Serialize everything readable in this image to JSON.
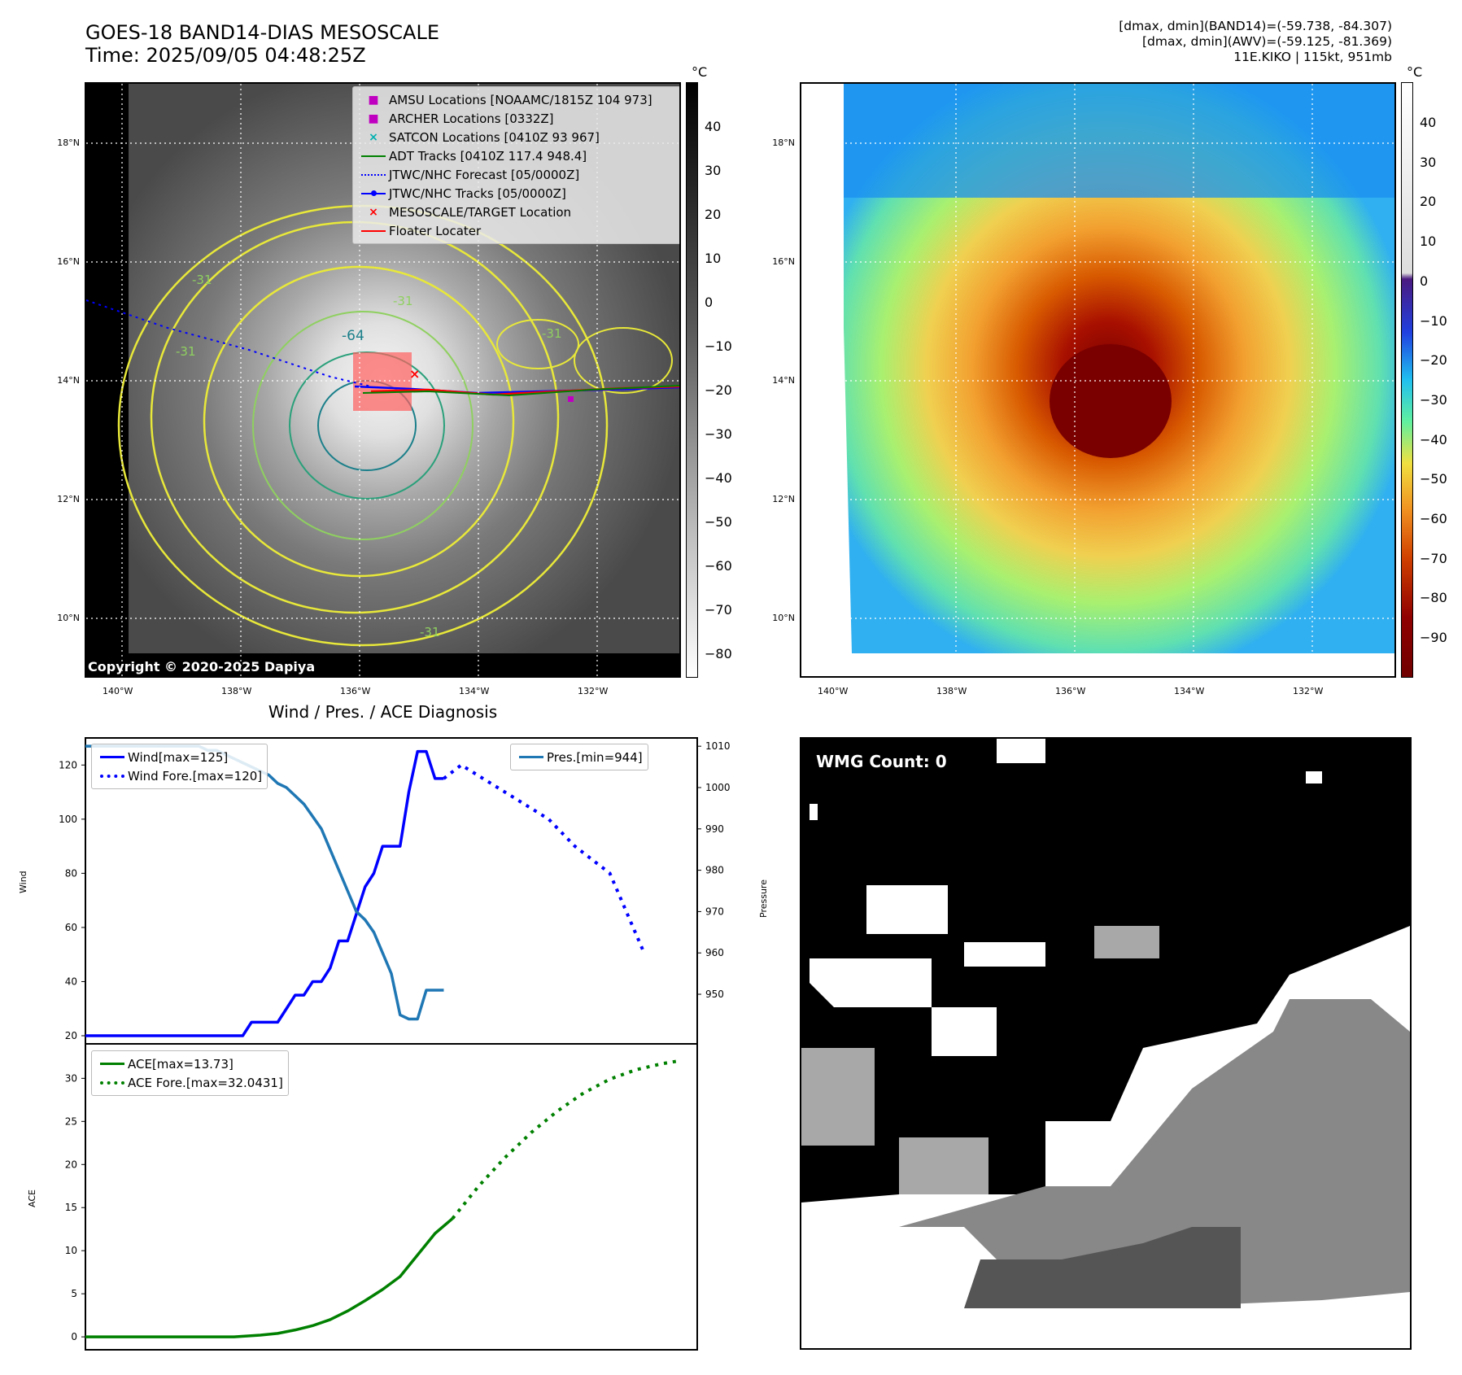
{
  "header": {
    "title_line1": "GOES-18 BAND14-DIAS MESOSCALE",
    "title_line2": "Time: 2025/09/05 04:48:25Z",
    "info_line1": "[dmax, dmin](BAND14)=(-59.738, -84.307)",
    "info_line2": "[dmax, dmin](AWV)=(-59.125, -81.369)",
    "info_line3": "11E.KIKO | 115kt, 951mb"
  },
  "map_axes": {
    "lat_labels": [
      "18°N",
      "16°N",
      "14°N",
      "12°N",
      "10°N"
    ],
    "lon_labels": [
      "140°W",
      "138°W",
      "136°W",
      "134°W",
      "132°W"
    ]
  },
  "ir_panel": {
    "legend": [
      {
        "label": "AMSU Locations [NOAAMC/1815Z 104 973]",
        "icon": "square-marker",
        "color": "#c000c0"
      },
      {
        "label": "ARCHER Locations [0332Z]",
        "icon": "square-marker",
        "color": "#c000c0"
      },
      {
        "label": "SATCON Locations [0410Z 93 967]",
        "icon": "x-marker",
        "color": "#00b0b0"
      },
      {
        "label": "ADT Tracks [0410Z 117.4 948.4]",
        "icon": "solid-line",
        "color": "#008000"
      },
      {
        "label": "JTWC/NHC Forecast [05/0000Z]",
        "icon": "dotted-line",
        "color": "#0000ff"
      },
      {
        "label": "JTWC/NHC Tracks [05/0000Z]",
        "icon": "line-dot",
        "color": "#0000ff"
      },
      {
        "label": "MESOSCALE/TARGET Location",
        "icon": "x-marker",
        "color": "#ff0000"
      },
      {
        "label": "Floater Locater",
        "icon": "solid-line",
        "color": "#ff0000"
      }
    ],
    "contour_labels": [
      "-31",
      "-64",
      "-31",
      "-31",
      "-31",
      "-31"
    ],
    "copyright": "Copyright © 2020-2025 Dapiya",
    "colorbar_unit": "°C",
    "colorbar_ticks": [
      "40",
      "30",
      "20",
      "10",
      "0",
      "−10",
      "−20",
      "−30",
      "−40",
      "−50",
      "−60",
      "−70",
      "−80"
    ]
  },
  "awv_panel": {
    "colorbar_unit": "°C",
    "colorbar_ticks": [
      "40",
      "30",
      "20",
      "10",
      "0",
      "−10",
      "−20",
      "−30",
      "−40",
      "−50",
      "−60",
      "−70",
      "−80",
      "−90"
    ]
  },
  "wmg_panel": {
    "label": "WMG Count: 0"
  },
  "diagnosis_title": "Wind / Pres. / ACE Diagnosis",
  "chart_data": [
    {
      "type": "line",
      "title": "Wind / Pres. / ACE Diagnosis",
      "ylabel": "Wind",
      "ylabel_right": "Pressure",
      "ylim": [
        17,
        130
      ],
      "ylim_right": [
        938,
        1012
      ],
      "yticks": [
        "120",
        "100",
        "80",
        "60",
        "40",
        "20"
      ],
      "yticks_right": [
        "1010",
        "1000",
        "990",
        "980",
        "970",
        "960",
        "950"
      ],
      "x": [
        0,
        1,
        2,
        3,
        4,
        5,
        6,
        7,
        8,
        9,
        10,
        11,
        12,
        13,
        14,
        15,
        16,
        17,
        18,
        19,
        20,
        21,
        22,
        23,
        24,
        25,
        26,
        27,
        28,
        29,
        30,
        31,
        32,
        33,
        34,
        35,
        36,
        37,
        38,
        39,
        40,
        41,
        42,
        43,
        44,
        45,
        46,
        47
      ],
      "series": [
        {
          "name": "Wind[max=125]",
          "color": "#0000ff",
          "style": "solid",
          "x": [
            0,
            1,
            2,
            3,
            4,
            5,
            6,
            7,
            8,
            9,
            10,
            11,
            12,
            13,
            14,
            15,
            16,
            17,
            18,
            19,
            20,
            21,
            22,
            23,
            24,
            25,
            26,
            27,
            28,
            29,
            30,
            31,
            32,
            33,
            34,
            35,
            36,
            37,
            38,
            39,
            40,
            41
          ],
          "values": [
            20,
            20,
            20,
            20,
            20,
            20,
            20,
            20,
            20,
            20,
            20,
            20,
            20,
            20,
            20,
            20,
            20,
            20,
            20,
            25,
            25,
            25,
            25,
            30,
            35,
            35,
            40,
            40,
            45,
            55,
            55,
            65,
            75,
            80,
            90,
            90,
            90,
            110,
            125,
            125,
            115,
            115
          ]
        },
        {
          "name": "Wind Fore.[max=120]",
          "color": "#0000ff",
          "style": "dotted",
          "x": [
            41,
            43,
            48,
            53,
            56,
            58,
            60,
            62,
            64
          ],
          "values": [
            115,
            120,
            110,
            100,
            90,
            85,
            80,
            65,
            50
          ]
        },
        {
          "name": "Pres.[min=944]",
          "color": "#1f77b4",
          "style": "solid",
          "axis": "right",
          "x": [
            0,
            1,
            2,
            3,
            4,
            5,
            6,
            7,
            8,
            9,
            10,
            11,
            12,
            13,
            14,
            15,
            16,
            17,
            18,
            19,
            20,
            21,
            22,
            23,
            24,
            25,
            26,
            27,
            28,
            29,
            30,
            31,
            32,
            33,
            34,
            35,
            36,
            37,
            38,
            39,
            40,
            41
          ],
          "values": [
            1010,
            1010,
            1010,
            1010,
            1010,
            1010,
            1010,
            1010,
            1010,
            1010,
            1010,
            1010,
            1010,
            1010,
            1009,
            1009,
            1008,
            1007,
            1006,
            1005,
            1004,
            1003,
            1001,
            1000,
            998,
            996,
            993,
            990,
            985,
            980,
            975,
            970,
            968,
            965,
            960,
            955,
            945,
            944,
            944,
            951,
            951,
            951
          ]
        }
      ]
    },
    {
      "type": "line",
      "ylabel": "ACE",
      "ylim": [
        -1.5,
        34
      ],
      "yticks": [
        "30",
        "25",
        "20",
        "15",
        "10",
        "5",
        "0"
      ],
      "series": [
        {
          "name": "ACE[max=13.73]",
          "color": "#008000",
          "style": "solid",
          "x": [
            0,
            17,
            20,
            22,
            24,
            26,
            28,
            30,
            32,
            34,
            36,
            38,
            40,
            42
          ],
          "values": [
            0,
            0,
            0.2,
            0.4,
            0.8,
            1.3,
            2.0,
            3.0,
            4.2,
            5.5,
            7.0,
            9.5,
            12.0,
            13.73
          ]
        },
        {
          "name": "ACE Fore.[max=32.0431]",
          "color": "#008000",
          "style": "dotted",
          "x": [
            42,
            45,
            48,
            51,
            54,
            57,
            60,
            63,
            66,
            68
          ],
          "values": [
            13.73,
            17.5,
            20.8,
            23.7,
            26.2,
            28.3,
            29.9,
            31.0,
            31.7,
            32.04
          ]
        }
      ]
    }
  ]
}
